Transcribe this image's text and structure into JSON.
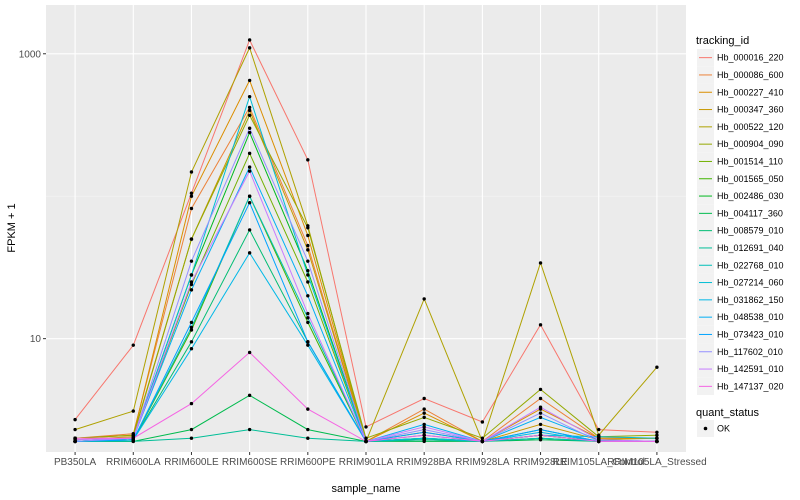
{
  "chart_data": {
    "type": "line",
    "xlabel": "sample_name",
    "ylabel": "FPKM + 1",
    "y_scale": "log10",
    "ylim": [
      1.6,
      2200
    ],
    "y_ticks": [
      {
        "value": 10,
        "label": "10"
      },
      {
        "value": 1000,
        "label": "1000"
      }
    ],
    "grid": true,
    "categories": [
      "PB350LA",
      "RRIM600LA",
      "RRIM600LE",
      "RRIM600SE",
      "RRIM600PE",
      "RRIM901LA",
      "RRIM928BA",
      "RRIM928LA",
      "RRIM928LE",
      "RRIM105LA_Control",
      "RRIM105LA_Stressed"
    ],
    "legend": {
      "title": "tracking_id",
      "placement": "right",
      "status_title": "quant_status",
      "status_label": "OK"
    },
    "series": [
      {
        "name": "Hb_000016_220",
        "color": "#F8766D",
        "values": [
          2.7,
          9,
          105,
          1250,
          180,
          2.4,
          3.8,
          2.6,
          12.5,
          2.3,
          2.2
        ]
      },
      {
        "name": "Hb_000086_600",
        "color": "#EC8239",
        "values": [
          2.0,
          2.15,
          82,
          420,
          45,
          1.9,
          3.2,
          1.9,
          3.8,
          2.0,
          2.0
        ]
      },
      {
        "name": "Hb_000227_410",
        "color": "#DB8E00",
        "values": [
          2.0,
          2.1,
          100,
          650,
          53,
          1.9,
          3.0,
          1.9,
          3.2,
          2.0,
          2.0
        ]
      },
      {
        "name": "Hb_000347_360",
        "color": "#C79800",
        "values": [
          1.95,
          2.05,
          50,
          400,
          42,
          1.9,
          2.2,
          1.9,
          2.5,
          1.95,
          2.0
        ]
      },
      {
        "name": "Hb_000522_120",
        "color": "#AFA100",
        "values": [
          2.3,
          3.1,
          148,
          1100,
          62,
          1.9,
          19,
          1.9,
          34,
          2.1,
          6.3
        ]
      },
      {
        "name": "Hb_000904_090",
        "color": "#94A900",
        "values": [
          2.0,
          2.1,
          50,
          370,
          60,
          2.0,
          2.8,
          2.0,
          4.4,
          2.05,
          2.1
        ]
      },
      {
        "name": "Hb_001514_110",
        "color": "#72B000",
        "values": [
          1.9,
          2.0,
          24,
          200,
          25,
          1.9,
          2.0,
          1.9,
          2.1,
          1.9,
          1.9
        ]
      },
      {
        "name": "Hb_001565_050",
        "color": "#3FB500",
        "values": [
          1.9,
          1.95,
          11.5,
          100,
          13,
          1.9,
          1.95,
          1.9,
          2.0,
          1.9,
          1.9
        ]
      },
      {
        "name": "Hb_002486_030",
        "color": "#00B81F",
        "values": [
          1.9,
          2.0,
          28,
          280,
          30,
          1.9,
          2.0,
          1.9,
          2.1,
          1.9,
          1.9
        ]
      },
      {
        "name": "Hb_004117_360",
        "color": "#00BB4E",
        "values": [
          1.9,
          1.9,
          2.3,
          4.0,
          2.3,
          1.9,
          1.9,
          1.9,
          1.95,
          1.9,
          1.9
        ]
      },
      {
        "name": "Hb_008579_010",
        "color": "#00BD73",
        "values": [
          1.9,
          1.95,
          9.5,
          58,
          9.5,
          1.9,
          1.95,
          1.9,
          2.0,
          1.9,
          1.9
        ]
      },
      {
        "name": "Hb_012691_040",
        "color": "#00BE97",
        "values": [
          1.9,
          1.9,
          2.0,
          2.3,
          2.0,
          1.9,
          1.95,
          1.9,
          2.3,
          1.9,
          1.9
        ]
      },
      {
        "name": "Hb_022768_010",
        "color": "#00BFB8",
        "values": [
          1.9,
          1.95,
          12,
          100,
          14,
          1.9,
          2.0,
          1.9,
          2.0,
          1.9,
          1.9
        ]
      },
      {
        "name": "Hb_027214_060",
        "color": "#00BDD5",
        "values": [
          1.9,
          2.0,
          28,
          500,
          28,
          1.9,
          2.0,
          1.9,
          2.1,
          2.05,
          2.0
        ]
      },
      {
        "name": "Hb_031862_150",
        "color": "#00B8E7",
        "values": [
          1.9,
          1.95,
          8.5,
          40,
          9,
          1.9,
          2.1,
          1.9,
          2.2,
          1.9,
          1.9
        ]
      },
      {
        "name": "Hb_048538_010",
        "color": "#00AFF4",
        "values": [
          1.9,
          2.0,
          22,
          160,
          20,
          1.9,
          2.5,
          1.9,
          2.8,
          1.95,
          1.9
        ]
      },
      {
        "name": "Hb_073423_010",
        "color": "#00A3FF",
        "values": [
          1.9,
          1.95,
          13,
          90,
          9.5,
          1.9,
          2.2,
          1.9,
          2.3,
          1.9,
          1.9
        ]
      },
      {
        "name": "Hb_117602_010",
        "color": "#9590FF",
        "values": [
          1.9,
          2.0,
          35,
          300,
          35,
          1.9,
          2.3,
          1.9,
          3.0,
          1.9,
          1.9
        ]
      },
      {
        "name": "Hb_142591_010",
        "color": "#C77CFF",
        "values": [
          1.95,
          2.0,
          25,
          150,
          15,
          1.9,
          2.4,
          1.9,
          3.3,
          1.95,
          1.9
        ]
      },
      {
        "name": "Hb_147137_020",
        "color": "#F564E3",
        "values": [
          2.0,
          2.0,
          3.5,
          8,
          3.2,
          1.9,
          2.1,
          1.9,
          2.1,
          1.9,
          1.9
        ]
      }
    ]
  }
}
